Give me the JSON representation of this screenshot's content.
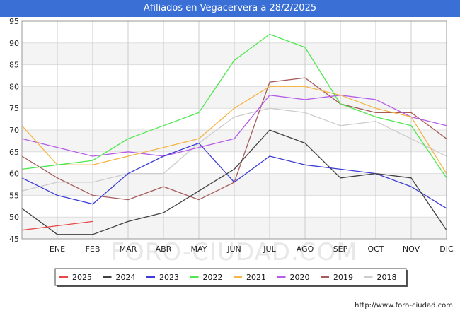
{
  "chart_data": {
    "type": "line",
    "title": "Afiliados en Vegacervera a 28/2/2025",
    "xlabel": "",
    "ylabel": "",
    "categories": [
      "DIC",
      "ENE",
      "FEB",
      "MAR",
      "ABR",
      "MAY",
      "JUN",
      "JUL",
      "AGO",
      "SEP",
      "OCT",
      "NOV",
      "DIC"
    ],
    "x_tick_labels": [
      "",
      "ENE",
      "FEB",
      "MAR",
      "ABR",
      "MAY",
      "JUN",
      "JUL",
      "AGO",
      "SEP",
      "OCT",
      "NOV",
      "DIC"
    ],
    "ylim": [
      45,
      95
    ],
    "yticks": [
      45,
      50,
      55,
      60,
      65,
      70,
      75,
      80,
      85,
      90,
      95
    ],
    "grid": true,
    "legend_position": "bottom",
    "series": [
      {
        "name": "2018",
        "color": "#cccccc",
        "values": [
          56,
          58,
          58,
          60,
          60,
          67,
          73,
          75,
          74,
          71,
          72,
          68,
          64
        ]
      },
      {
        "name": "2019",
        "color": "#a85a5a",
        "values": [
          64,
          59,
          55,
          54,
          57,
          54,
          58,
          81,
          82,
          76,
          74,
          74,
          68
        ]
      },
      {
        "name": "2020",
        "color": "#b65de8",
        "values": [
          68,
          66,
          64,
          65,
          64,
          66,
          68,
          78,
          77,
          78,
          77,
          73,
          71
        ]
      },
      {
        "name": "2021",
        "color": "#f5b547",
        "values": [
          71,
          62,
          62,
          64,
          66,
          68,
          75,
          80,
          80,
          78,
          75,
          73,
          60
        ]
      },
      {
        "name": "2022",
        "color": "#4de84d",
        "values": [
          61,
          62,
          63,
          68,
          71,
          74,
          86,
          92,
          89,
          76,
          73,
          71,
          59
        ]
      },
      {
        "name": "2023",
        "color": "#3c3cd6",
        "values": [
          59,
          55,
          53,
          60,
          64,
          67,
          58,
          64,
          62,
          61,
          60,
          57,
          52
        ]
      },
      {
        "name": "2024",
        "color": "#404040",
        "values": [
          52,
          46,
          46,
          49,
          51,
          56,
          61,
          70,
          67,
          59,
          60,
          59,
          47
        ]
      },
      {
        "name": "2025",
        "color": "#e84848",
        "values": [
          47,
          48,
          49,
          null,
          null,
          null,
          null,
          null,
          null,
          null,
          null,
          null,
          null
        ]
      }
    ],
    "legend_order": [
      "2025",
      "2024",
      "2023",
      "2022",
      "2021",
      "2020",
      "2019",
      "2018"
    ]
  },
  "watermark": "FORO-CIUDAD.COM",
  "footer_url": "http://www.foro-ciudad.com"
}
